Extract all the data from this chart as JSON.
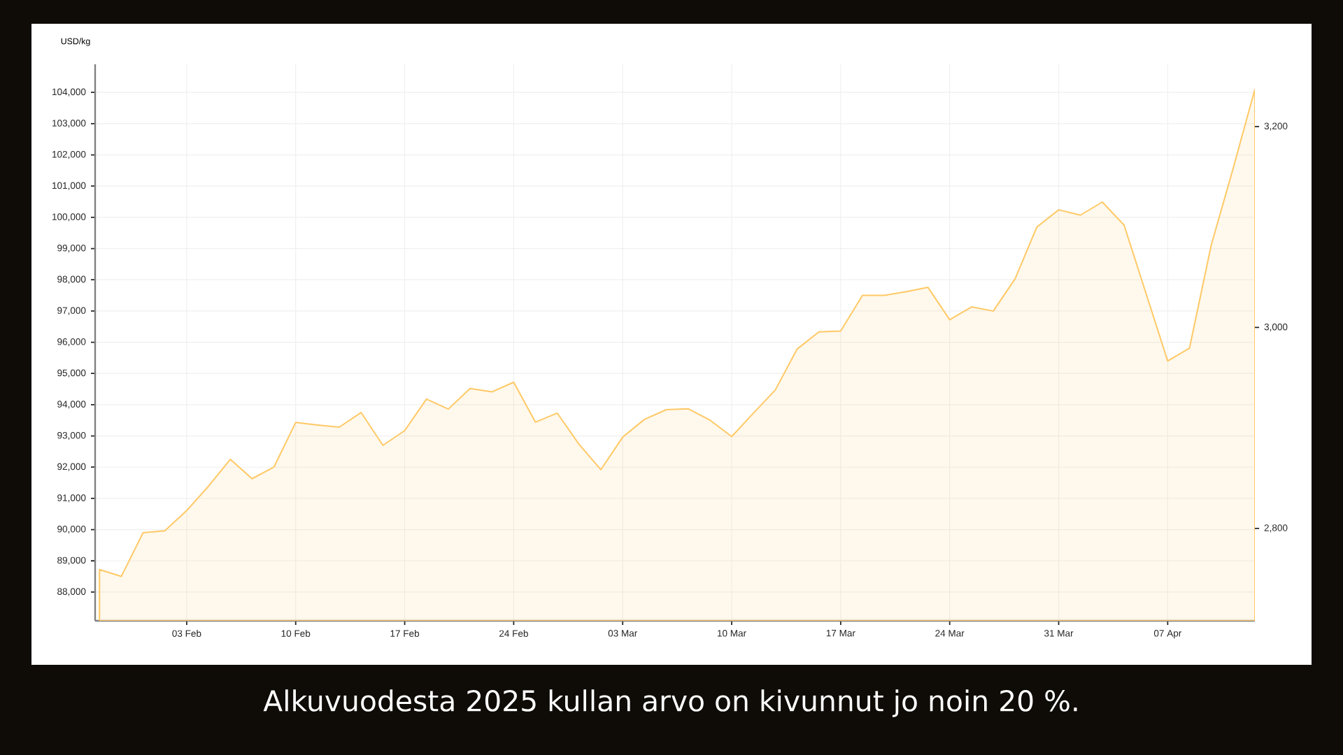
{
  "chart_data": {
    "type": "area",
    "ylabel": "USD/kg",
    "categories": [
      null,
      null,
      null,
      null,
      "03 Feb",
      null,
      null,
      null,
      null,
      "10 Feb",
      null,
      null,
      null,
      null,
      "17 Feb",
      null,
      null,
      null,
      null,
      "24 Feb",
      null,
      null,
      null,
      null,
      "03 Mar",
      null,
      null,
      null,
      null,
      "10 Mar",
      null,
      null,
      null,
      null,
      "17 Mar",
      null,
      null,
      null,
      null,
      "24 Mar",
      null,
      null,
      null,
      null,
      "31 Mar",
      null,
      null,
      null,
      null,
      "07 Apr",
      null,
      null,
      null,
      null
    ],
    "series": [
      {
        "color": "#ffc966",
        "values": [
          88720,
          88500,
          89900,
          89960,
          90610,
          91390,
          92250,
          91630,
          92000,
          93430,
          93350,
          93280,
          93750,
          92700,
          93170,
          94180,
          93860,
          94520,
          94410,
          94720,
          93440,
          93730,
          92730,
          91920,
          92960,
          93530,
          93840,
          93870,
          93510,
          92980,
          93730,
          94470,
          95780,
          96330,
          96360,
          97500,
          97500,
          97620,
          97760,
          96720,
          97130,
          97000,
          98030,
          99690,
          100240,
          100070,
          100490,
          99750,
          97580,
          95400,
          95810,
          99120,
          101560,
          104100
        ]
      }
    ],
    "ylim": [
      87080,
      104900
    ],
    "yticks": [
      {
        "value": 88000,
        "label": "88,000"
      },
      {
        "value": 89000,
        "label": "89,000"
      },
      {
        "value": 90000,
        "label": "90,000"
      },
      {
        "value": 91000,
        "label": "91,000"
      },
      {
        "value": 92000,
        "label": "92,000"
      },
      {
        "value": 93000,
        "label": "93,000"
      },
      {
        "value": 94000,
        "label": "94,000"
      },
      {
        "value": 95000,
        "label": "95,000"
      },
      {
        "value": 96000,
        "label": "96,000"
      },
      {
        "value": 97000,
        "label": "97,000"
      },
      {
        "value": 98000,
        "label": "98,000"
      },
      {
        "value": 99000,
        "label": "99,000"
      },
      {
        "value": 100000,
        "label": "100,000"
      },
      {
        "value": 101000,
        "label": "101,000"
      },
      {
        "value": 102000,
        "label": "102,000"
      },
      {
        "value": 103000,
        "label": "103,000"
      },
      {
        "value": 104000,
        "label": "104,000"
      }
    ],
    "y2lim": [
      2708,
      3262
    ],
    "y2ticks": [
      {
        "value": 2800,
        "label": "2,800"
      },
      {
        "value": 3000,
        "label": "3,000"
      },
      {
        "value": 3200,
        "label": "3,200"
      }
    ],
    "grid": true,
    "annotations": [
      "Alkuvuodesta 2025 kullan arvo on kivunnut jo noin 20 %."
    ]
  }
}
